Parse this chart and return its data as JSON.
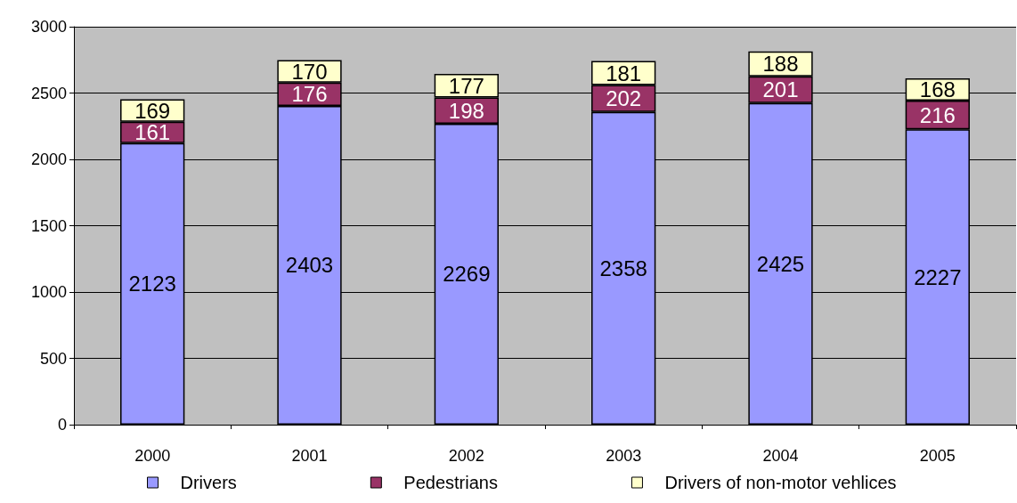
{
  "chart_data": {
    "type": "bar",
    "stacked": true,
    "categories": [
      "2000",
      "2001",
      "2002",
      "2003",
      "2004",
      "2005"
    ],
    "series": [
      {
        "name": "Drivers",
        "color": "#9999ff",
        "values": [
          2123,
          2403,
          2269,
          2358,
          2425,
          2227
        ]
      },
      {
        "name": "Pedestrians",
        "color": "#993366",
        "values": [
          161,
          176,
          198,
          202,
          201,
          216
        ]
      },
      {
        "name": "Drivers of non-motor vehlices",
        "color": "#ffffcc",
        "values": [
          169,
          170,
          177,
          181,
          188,
          168
        ]
      }
    ],
    "ylim": [
      0,
      3000
    ],
    "yticks": [
      0,
      500,
      1000,
      1500,
      2000,
      2500,
      3000
    ],
    "grid": "y",
    "legend": "bottom",
    "data_labels": true
  }
}
